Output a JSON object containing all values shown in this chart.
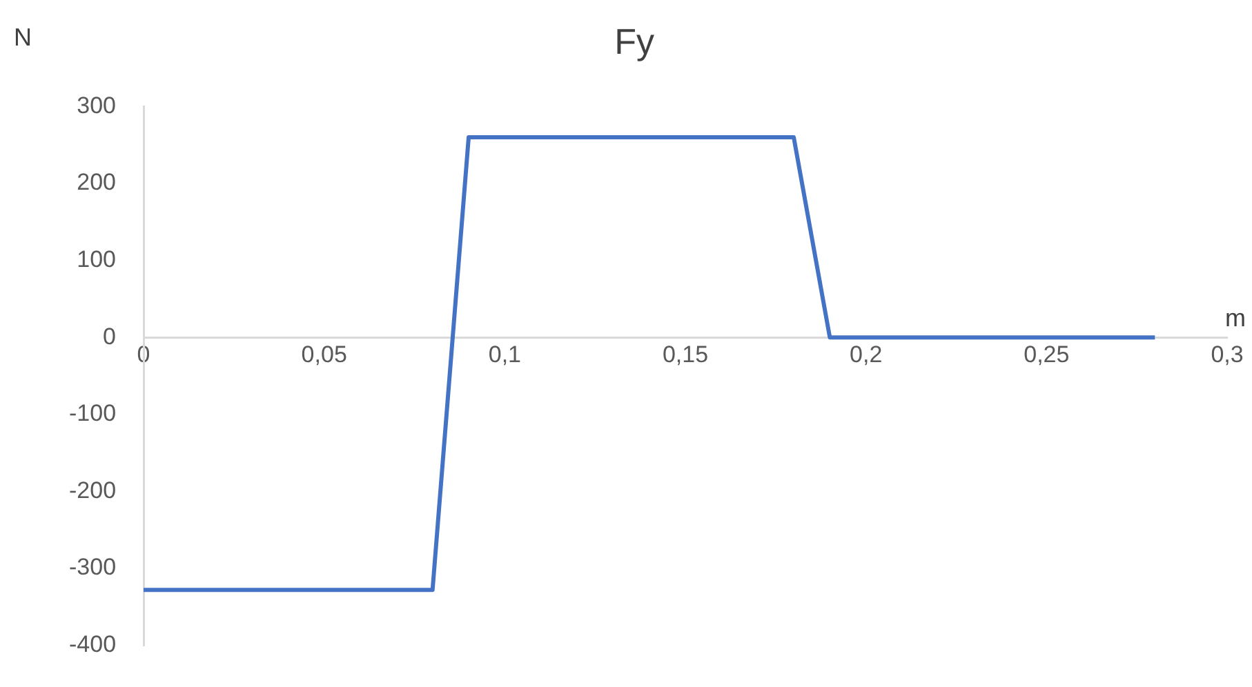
{
  "chart_data": {
    "type": "line",
    "title": "Fy",
    "xlabel": "m",
    "ylabel": "N",
    "x": [
      0,
      0.08,
      0.09,
      0.18,
      0.19,
      0.28
    ],
    "series": [
      {
        "color": "#4472c4",
        "values": [
          -328,
          -328,
          260,
          260,
          0,
          0
        ]
      }
    ],
    "xlim": [
      0,
      0.3
    ],
    "xticks": [
      0,
      {
        "value": 0.05,
        "label": "0,05"
      },
      {
        "value": 0.1,
        "label": "0,1"
      },
      {
        "value": 0.15,
        "label": "0,15"
      },
      {
        "value": 0.2,
        "label": "0,2"
      },
      {
        "value": 0.25,
        "label": "0,25"
      },
      {
        "value": 0.3,
        "label": "0,3"
      }
    ],
    "ylim": [
      -400,
      300
    ],
    "yticks": [
      -400,
      -300,
      -200,
      -100,
      0,
      100,
      200,
      300
    ],
    "grid": false,
    "legend": false,
    "marker": "none",
    "line_style": "solid"
  }
}
